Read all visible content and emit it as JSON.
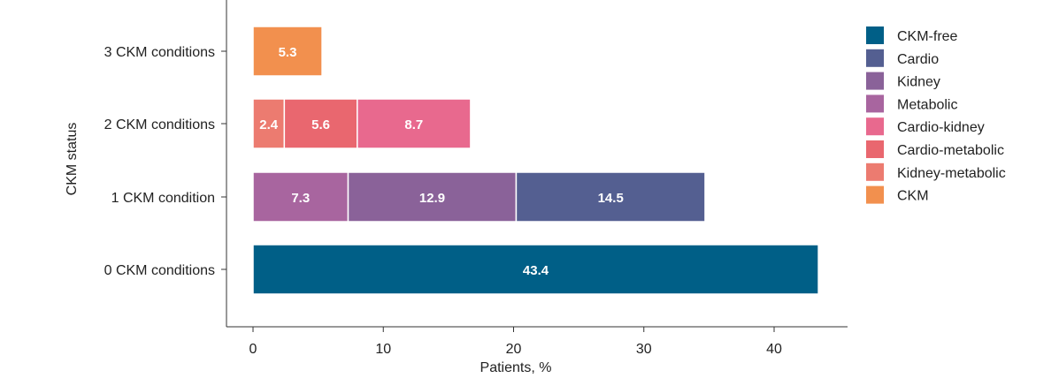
{
  "chart_data": {
    "type": "bar",
    "orientation": "horizontal",
    "stacked": true,
    "categories": [
      "0 CKM conditions",
      "1 CKM condition",
      "2 CKM conditions",
      "3 CKM conditions"
    ],
    "xlabel": "Patients, %",
    "ylabel": "CKM status",
    "xlim": [
      0,
      45
    ],
    "xticks": [
      0,
      10,
      20,
      30,
      40
    ],
    "grid": false,
    "legend_position": "right",
    "series": [
      {
        "name": "CKM-free",
        "color": "#005f87",
        "category": "0 CKM conditions",
        "value": 43.4,
        "label": "43.4"
      },
      {
        "name": "Cardio",
        "color": "#545f91",
        "category": "1 CKM condition",
        "value": 14.5,
        "label": "14.5"
      },
      {
        "name": "Kidney",
        "color": "#8a6299",
        "category": "1 CKM condition",
        "value": 12.9,
        "label": "12.9"
      },
      {
        "name": "Metabolic",
        "color": "#a8659f",
        "category": "1 CKM condition",
        "value": 7.3,
        "label": "7.3"
      },
      {
        "name": "Cardio-kidney",
        "color": "#e8698e",
        "category": "2 CKM conditions",
        "value": 8.7,
        "label": "8.7"
      },
      {
        "name": "Cardio-metabolic",
        "color": "#e9676f",
        "category": "2 CKM conditions",
        "value": 5.6,
        "label": "5.6"
      },
      {
        "name": "Kidney-metabolic",
        "color": "#ec7b70",
        "category": "2 CKM conditions",
        "value": 2.4,
        "label": "2.4"
      },
      {
        "name": "CKM",
        "color": "#f2904e",
        "category": "3 CKM conditions",
        "value": 5.3,
        "label": "5.3"
      }
    ],
    "stack_order": {
      "0 CKM conditions": [
        "CKM-free"
      ],
      "1 CKM condition": [
        "Metabolic",
        "Kidney",
        "Cardio"
      ],
      "2 CKM conditions": [
        "Kidney-metabolic",
        "Cardio-metabolic",
        "Cardio-kidney"
      ],
      "3 CKM conditions": [
        "CKM"
      ]
    }
  }
}
